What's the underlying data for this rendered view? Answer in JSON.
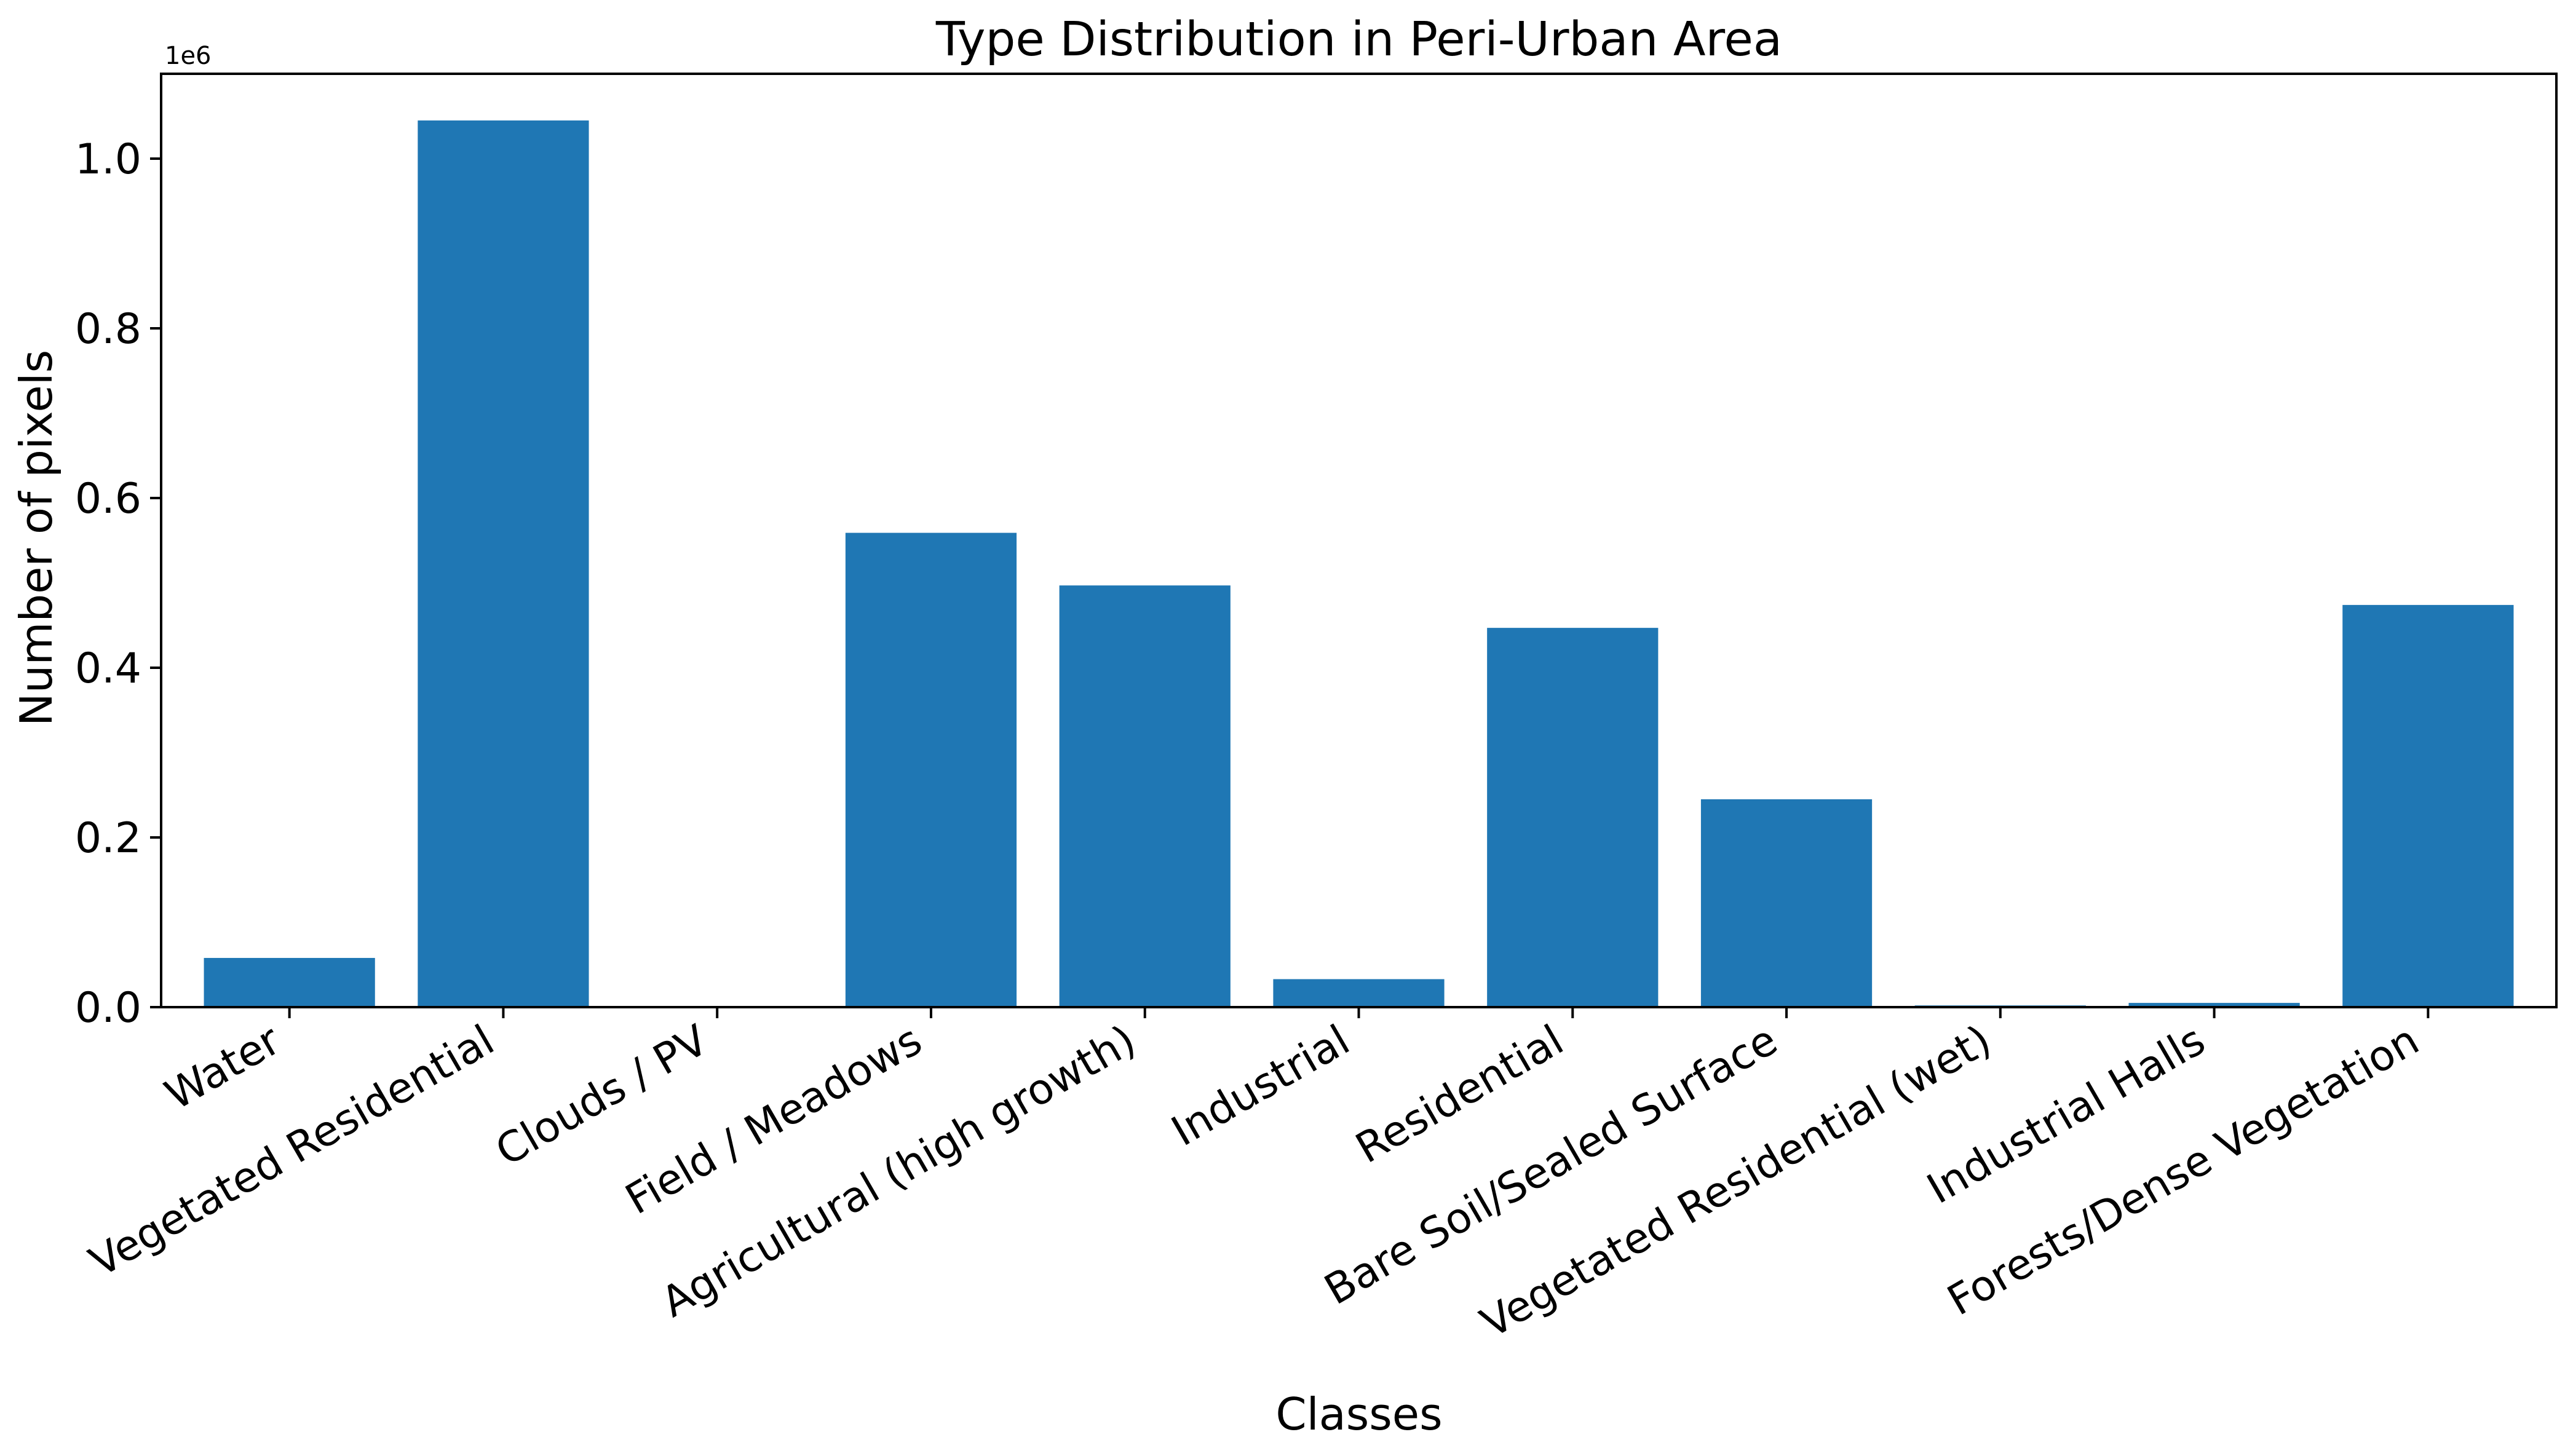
{
  "chart_data": {
    "type": "bar",
    "title": "Type Distribution in Peri-Urban Area",
    "xlabel": "Classes",
    "ylabel": "Number of pixels",
    "y_offset_label": "1e6",
    "categories": [
      "Water",
      "Vegetated Residential",
      "Clouds / PV",
      "Field / Meadows",
      "Agricultural (high growth)",
      "Industrial",
      "Residential",
      "Bare Soil/Sealed Surface",
      "Vegetated Residential (wet)",
      "Industrial Halls",
      "Forests/Dense Vegetation"
    ],
    "values": [
      58000,
      1045000,
      0,
      559000,
      497000,
      33000,
      447000,
      245000,
      2000,
      5000,
      474000
    ],
    "ylim": [
      0,
      1100000
    ],
    "yticks": [
      0,
      200000,
      400000,
      600000,
      800000,
      1000000
    ],
    "ytick_labels": [
      "0.0",
      "0.2",
      "0.4",
      "0.6",
      "0.8",
      "1.0"
    ],
    "bar_color": "#1f77b4",
    "grid": false,
    "legend": "none"
  }
}
